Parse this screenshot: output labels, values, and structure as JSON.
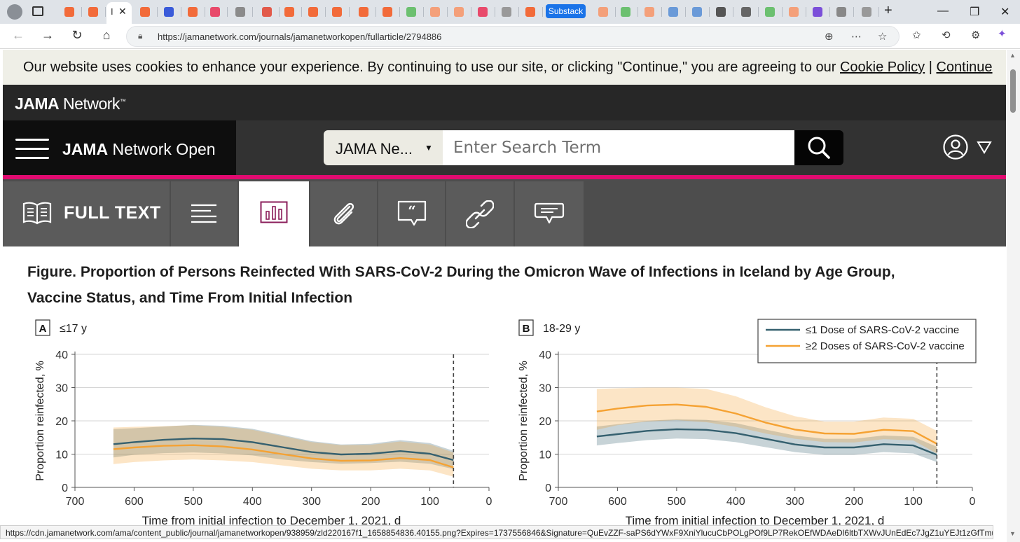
{
  "browser": {
    "active_tab_label": "I",
    "substack_tab_label": "Substack",
    "url": "https://jamanetwork.com/journals/jamanetworkopen/fullarticle/2794886"
  },
  "cookie_banner": {
    "text": "Our website uses cookies to enhance your experience. By continuing to use our site, or clicking \"Continue,\" you are agreeing to our",
    "policy_link": "Cookie Policy",
    "separator": "|",
    "continue_link": "Continue"
  },
  "header": {
    "logo_bold": "JAMA",
    "logo_rest": " Network",
    "logo_tm": "™",
    "journal_bold": "JAMA",
    "journal_rest": " Network Open",
    "search_scope": "JAMA Ne...",
    "search_placeholder": "Enter Search Term"
  },
  "article_tabs": {
    "full_text_label": "FULL TEXT"
  },
  "figure": {
    "title": "Figure.  Proportion of Persons Reinfected With SARS-CoV-2 During the Omicron Wave of Infections in Iceland by Age Group, Vaccine Status, and Time From Initial Infection"
  },
  "chart_data": [
    {
      "type": "line",
      "panel_letter": "A",
      "panel_label": "≤17 y",
      "ylabel": "Proportion reinfected, %",
      "xlabel": "Time from initial infection to December 1, 2021, d",
      "xlim": [
        700,
        0
      ],
      "ylim": [
        0,
        40
      ],
      "x_ticks": [
        "700",
        "600",
        "500",
        "400",
        "300",
        "200",
        "100",
        "0"
      ],
      "y_ticks": [
        "0",
        "10",
        "20",
        "30",
        "40"
      ],
      "vline_x": 60,
      "grid": true,
      "x": [
        635,
        600,
        550,
        500,
        450,
        400,
        350,
        300,
        250,
        200,
        150,
        100,
        60
      ],
      "series": [
        {
          "name": "≤1 Dose of SARS-CoV-2 vaccine",
          "color": "#35606f",
          "values": [
            13,
            13.6,
            14.3,
            14.7,
            14.5,
            13.6,
            12.1,
            10.6,
            9.9,
            10.1,
            10.9,
            10.1,
            8.2
          ],
          "lower": [
            9,
            9.8,
            10.3,
            10.5,
            10.2,
            9.6,
            8.4,
            7.6,
            7.1,
            7.3,
            7.7,
            7.1,
            5.5
          ],
          "upper": [
            17.5,
            17.8,
            18.3,
            18.8,
            18.5,
            17.6,
            15.8,
            13.9,
            12.9,
            13.1,
            14.2,
            13.3,
            11
          ]
        },
        {
          "name": "≥2 Doses of SARS-CoV-2 vaccine",
          "color": "#f5a233",
          "values": [
            11.5,
            12,
            12.5,
            12.7,
            12.3,
            11.4,
            10,
            8.7,
            8,
            8.1,
            8.8,
            8.2,
            6
          ],
          "lower": [
            7,
            7.6,
            8.1,
            8.4,
            8.1,
            7.6,
            6.6,
            5.6,
            5.1,
            5.1,
            5.6,
            5.1,
            3.2
          ],
          "upper": [
            18,
            18.2,
            18.4,
            18.7,
            18.2,
            17.3,
            15.5,
            13.6,
            12.7,
            12.8,
            13.8,
            12.9,
            10.5
          ]
        }
      ]
    },
    {
      "type": "line",
      "panel_letter": "B",
      "panel_label": "18-29 y",
      "ylabel": "Proportion reinfected, %",
      "xlabel": "Time from initial infection to December 1, 2021, d",
      "xlim": [
        700,
        0
      ],
      "ylim": [
        0,
        40
      ],
      "x_ticks": [
        "700",
        "600",
        "500",
        "400",
        "300",
        "200",
        "100",
        "0"
      ],
      "y_ticks": [
        "0",
        "10",
        "20",
        "30",
        "40"
      ],
      "vline_x": 60,
      "grid": true,
      "legend": "top-right",
      "x": [
        635,
        600,
        550,
        500,
        450,
        400,
        350,
        300,
        250,
        200,
        150,
        100,
        60
      ],
      "series": [
        {
          "name": "≤1 Dose of SARS-CoV-2 vaccine",
          "color": "#35606f",
          "values": [
            15.3,
            16,
            17,
            17.5,
            17.3,
            16.3,
            14.6,
            12.9,
            12,
            12,
            13,
            12.6,
            9.8
          ],
          "lower": [
            12.6,
            13.3,
            14.2,
            14.7,
            14.5,
            13.6,
            12.1,
            10.6,
            9.8,
            9.8,
            10.6,
            10.2,
            7.6
          ],
          "upper": [
            18.3,
            19,
            20,
            20.5,
            20.3,
            19.3,
            17.4,
            15.6,
            14.6,
            14.6,
            15.6,
            15.2,
            12.2
          ]
        },
        {
          "name": "≥2 Doses of SARS-CoV-2 vaccine",
          "color": "#f5a233",
          "values": [
            22.8,
            23.7,
            24.6,
            24.9,
            24.2,
            22.2,
            19.5,
            17.4,
            16.2,
            16.1,
            17.3,
            16.9,
            13.1
          ],
          "lower": [
            17.3,
            18.7,
            19.8,
            20.2,
            19.6,
            18.2,
            16.2,
            14.6,
            13.6,
            13.5,
            14.5,
            14.1,
            10.2
          ],
          "upper": [
            29.6,
            29.8,
            30,
            30,
            29.6,
            27.4,
            24.1,
            21.4,
            19.8,
            19.8,
            21,
            20.6,
            17
          ]
        }
      ]
    }
  ],
  "status_bar": {
    "url": "https://cdn.jamanetwork.com/ama/content_public/journal/jamanetworkopen/938959/zld220167f1_1658854836.40155.png?Expires=1737556846&Signature=QuEvZZF-saPS6dYWxF9XniYlucuCbPOLgPOf9LP7RekOEfWDAeDl6ltbTXWvJUnEdEc7JgZ1uYEJt1zGfTmu1QtH1Y8YiEpK3gp..."
  }
}
